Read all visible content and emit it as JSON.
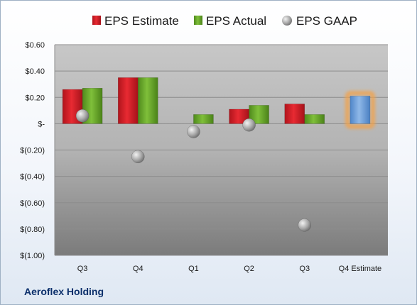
{
  "chart_data": {
    "type": "bar",
    "categories": [
      "Q3",
      "Q4",
      "Q1",
      "Q2",
      "Q3",
      "Q4 Estimate"
    ],
    "series": [
      {
        "name": "EPS Estimate",
        "type": "bar",
        "color": "#e0202a",
        "values": [
          0.26,
          0.35,
          null,
          0.11,
          0.15,
          null
        ]
      },
      {
        "name": "EPS Actual",
        "type": "bar",
        "color": "#6faa2c",
        "values": [
          0.27,
          0.35,
          0.07,
          0.14,
          0.07,
          null
        ]
      },
      {
        "name": "EPS GAAP",
        "type": "scatter",
        "color": "#a8a8a8",
        "values": [
          0.06,
          -0.25,
          -0.06,
          -0.01,
          -0.77,
          null
        ]
      },
      {
        "name": "Q4 Estimate",
        "type": "bar",
        "color": "#6fa0da",
        "highlight": "#f3a24a",
        "values": [
          null,
          null,
          null,
          null,
          null,
          0.21
        ]
      }
    ],
    "yticks": [
      {
        "value": 0.6,
        "label": "$0.60"
      },
      {
        "value": 0.4,
        "label": "$0.40"
      },
      {
        "value": 0.2,
        "label": "$0.20"
      },
      {
        "value": 0,
        "label": "$-"
      },
      {
        "value": -0.2,
        "label": "$(0.20)"
      },
      {
        "value": -0.4,
        "label": "$(0.40)"
      },
      {
        "value": -0.6,
        "label": "$(0.60)"
      },
      {
        "value": -0.8,
        "label": "$(0.80)"
      },
      {
        "value": -1.0,
        "label": "$(1.00)"
      }
    ],
    "ylim": [
      -1.0,
      0.6
    ],
    "grid": true,
    "legend_position": "top",
    "title": "",
    "xlabel": "",
    "ylabel": ""
  },
  "legend": {
    "estimate": "EPS Estimate",
    "actual": "EPS Actual",
    "gaap": "EPS GAAP"
  },
  "company": "Aeroflex Holding"
}
